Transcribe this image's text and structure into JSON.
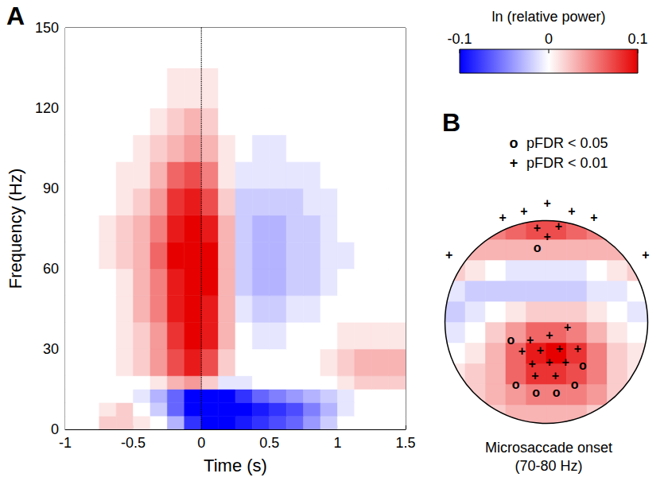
{
  "chart_data": [
    {
      "type": "heatmap",
      "panel": "A",
      "xlabel": "Time (s)",
      "ylabel": "Frequency (Hz)",
      "xlim": [
        -1,
        1.5
      ],
      "xticks": [
        -1,
        -0.5,
        0,
        0.5,
        1,
        1.5
      ],
      "ylim": [
        0,
        150
      ],
      "yticks": [
        0,
        30,
        60,
        90,
        120,
        150
      ],
      "grid": "y",
      "reference_line": 0,
      "time_edges": [
        -1,
        -0.875,
        -0.75,
        -0.625,
        -0.5,
        -0.375,
        -0.25,
        -0.125,
        0,
        0.125,
        0.25,
        0.375,
        0.5,
        0.625,
        0.75,
        0.875,
        1,
        1.125,
        1.25,
        1.375,
        1.5
      ],
      "freq_edges": [
        0,
        5,
        10,
        15,
        20,
        30,
        40,
        50,
        60,
        70,
        80,
        90,
        100,
        110,
        120,
        135,
        150
      ],
      "cells": [
        [
          0,
          0,
          0.02,
          0.02,
          0.01,
          0,
          -0.03,
          -0.08,
          -0.1,
          -0.1,
          -0.09,
          -0.08,
          -0.07,
          -0.06,
          -0.04,
          -0.02,
          0,
          0,
          0,
          0
        ],
        [
          0,
          0,
          0.01,
          0.02,
          0,
          -0.02,
          -0.06,
          -0.1,
          -0.1,
          -0.1,
          -0.1,
          -0.09,
          -0.08,
          -0.07,
          -0.05,
          -0.03,
          -0.01,
          0,
          0,
          0
        ],
        [
          0,
          0,
          0,
          0,
          -0.01,
          -0.03,
          -0.06,
          -0.1,
          -0.1,
          -0.1,
          -0.08,
          -0.06,
          -0.05,
          -0.04,
          -0.03,
          -0.02,
          -0.01,
          0,
          0,
          0
        ],
        [
          0,
          0,
          0,
          0,
          0,
          0.01,
          0.03,
          0.04,
          0.02,
          -0.01,
          -0.01,
          0,
          0,
          0,
          0,
          0,
          0.01,
          0.02,
          0.02,
          0.02
        ],
        [
          0,
          0,
          0,
          0.01,
          0.02,
          0.04,
          0.07,
          0.09,
          0.07,
          0.02,
          0,
          0,
          0,
          0,
          0,
          0.01,
          0.02,
          0.03,
          0.03,
          0.03
        ],
        [
          0,
          0,
          0,
          0.01,
          0.02,
          0.04,
          0.08,
          0.1,
          0.09,
          0.03,
          0,
          -0.01,
          -0.01,
          0,
          0,
          0,
          0.01,
          0.01,
          0.01,
          0.01
        ],
        [
          0,
          0,
          0,
          0.01,
          0.03,
          0.05,
          0.09,
          0.1,
          0.09,
          0.03,
          -0.01,
          -0.02,
          -0.02,
          -0.01,
          -0.01,
          0,
          0,
          0,
          0,
          0
        ],
        [
          0,
          0,
          0,
          0.01,
          0.03,
          0.05,
          0.09,
          0.1,
          0.1,
          0.03,
          -0.02,
          -0.03,
          -0.03,
          -0.02,
          -0.02,
          -0.01,
          0,
          0,
          0,
          0
        ],
        [
          0,
          0,
          0.01,
          0.02,
          0.03,
          0.06,
          0.1,
          0.1,
          0.1,
          0.03,
          -0.02,
          -0.03,
          -0.03,
          -0.02,
          -0.02,
          -0.01,
          -0.01,
          0,
          0,
          0
        ],
        [
          0,
          0,
          0.01,
          0.02,
          0.03,
          0.05,
          0.09,
          0.1,
          0.09,
          0.03,
          -0.02,
          -0.03,
          -0.03,
          -0.02,
          -0.02,
          -0.01,
          0,
          0,
          0,
          0
        ],
        [
          0,
          0,
          0,
          0.01,
          0.02,
          0.04,
          0.08,
          0.09,
          0.07,
          0.02,
          -0.02,
          -0.02,
          -0.02,
          -0.02,
          -0.01,
          -0.01,
          0,
          0,
          0,
          0
        ],
        [
          0,
          0,
          0,
          0.01,
          0.01,
          0.03,
          0.06,
          0.07,
          0.05,
          0.01,
          -0.01,
          -0.01,
          -0.01,
          -0.01,
          -0.01,
          0,
          0,
          0,
          0,
          0
        ],
        [
          0,
          0,
          0,
          0,
          0.01,
          0.02,
          0.03,
          0.04,
          0.03,
          0.01,
          0,
          -0.01,
          -0.01,
          0,
          0,
          0,
          0,
          0,
          0,
          0
        ],
        [
          0,
          0,
          0,
          0,
          0,
          0.01,
          0.02,
          0.03,
          0.02,
          0,
          0,
          0,
          0,
          0,
          0,
          0,
          0,
          0,
          0,
          0
        ],
        [
          0,
          0,
          0,
          0,
          0,
          0,
          0.01,
          0.01,
          0.01,
          0,
          0,
          0,
          0,
          0,
          0,
          0,
          0,
          0,
          0,
          0
        ],
        [
          0,
          0,
          0,
          0,
          0,
          0,
          0,
          0,
          0,
          0,
          0,
          0,
          0,
          0,
          0,
          0,
          0,
          0,
          0,
          0
        ]
      ],
      "colorbar": {
        "title": "ln (relative power)",
        "range": [
          -0.1,
          0.1
        ],
        "ticks": [
          -0.1,
          0,
          0.1
        ]
      }
    },
    {
      "type": "topomap",
      "panel": "B",
      "caption": [
        "Microsaccade onset",
        "(70-80 Hz)"
      ],
      "tick_labels": false,
      "x_edges": [
        -1.2,
        -1,
        -0.8,
        -0.6,
        -0.4,
        -0.2,
        0,
        0.2,
        0.4,
        0.6,
        0.8,
        1,
        1.2
      ],
      "y_edges": [
        -1.2,
        -1,
        -0.8,
        -0.6,
        -0.4,
        -0.2,
        0,
        0.2,
        0.4,
        0.6,
        0.8,
        1,
        1.2
      ],
      "values": [
        [
          0.01,
          0.01,
          0.01,
          0.01,
          0.02,
          0.02,
          0.02,
          0.02,
          0.01,
          0.01,
          0.01,
          0.01
        ],
        [
          0.01,
          0.01,
          0.01,
          0.02,
          0.03,
          0.03,
          0.03,
          0.03,
          0.02,
          0.01,
          0.01,
          0.01
        ],
        [
          0.01,
          0.01,
          0.02,
          0.03,
          0.04,
          0.05,
          0.05,
          0.05,
          0.04,
          0.02,
          0.01,
          0.01
        ],
        [
          0.01,
          0.01,
          0.02,
          0.03,
          0.06,
          0.08,
          0.08,
          0.07,
          0.05,
          0.02,
          0.01,
          0.01
        ],
        [
          0,
          0,
          0.01,
          0.03,
          0.06,
          0.09,
          0.1,
          0.08,
          0.05,
          0.02,
          0.01,
          0
        ],
        [
          -0.01,
          -0.01,
          0,
          0.02,
          0.04,
          0.06,
          0.06,
          0.05,
          0.03,
          0.01,
          0,
          -0.01
        ],
        [
          -0.02,
          -0.02,
          -0.01,
          0,
          0.01,
          0.02,
          0.02,
          0.02,
          0.01,
          0,
          -0.01,
          -0.01
        ],
        [
          0,
          -0.01,
          -0.02,
          -0.02,
          -0.02,
          -0.02,
          -0.02,
          -0.02,
          -0.01,
          -0.01,
          0,
          0.01
        ],
        [
          0.02,
          0.02,
          0.01,
          0,
          -0.01,
          -0.01,
          -0.01,
          -0.01,
          0,
          0.01,
          0.02,
          0.02
        ],
        [
          0.03,
          0.03,
          0.03,
          0.03,
          0.03,
          0.03,
          0.03,
          0.03,
          0.03,
          0.03,
          0.03,
          0.03
        ],
        [
          0.03,
          0.03,
          0.04,
          0.05,
          0.06,
          0.07,
          0.07,
          0.06,
          0.05,
          0.04,
          0.03,
          0.03
        ],
        [
          0.03,
          0.04,
          0.05,
          0.06,
          0.07,
          0.08,
          0.08,
          0.07,
          0.06,
          0.05,
          0.04,
          0.03
        ]
      ],
      "legend_items": [
        {
          "symbol": "o",
          "label": "pFDR < 0.05"
        },
        {
          "symbol": "+",
          "label": "pFDR < 0.01"
        }
      ],
      "electrodes": [
        {
          "x": 0.01,
          "y": 1.15,
          "mark": "+"
        },
        {
          "x": -0.22,
          "y": 1.07,
          "mark": "+"
        },
        {
          "x": 0.25,
          "y": 1.07,
          "mark": "+"
        },
        {
          "x": -0.43,
          "y": 1.01,
          "mark": "+"
        },
        {
          "x": 0.47,
          "y": 1.01,
          "mark": "+"
        },
        {
          "x": -0.09,
          "y": 0.91,
          "mark": "+"
        },
        {
          "x": 0.12,
          "y": 0.93,
          "mark": "+"
        },
        {
          "x": 0.01,
          "y": 0.83,
          "mark": "+"
        },
        {
          "x": -0.09,
          "y": 0.72,
          "mark": "o"
        },
        {
          "x": -0.96,
          "y": 0.65,
          "mark": "+"
        },
        {
          "x": 0.98,
          "y": 0.65,
          "mark": "+"
        },
        {
          "x": -0.35,
          "y": -0.17,
          "mark": "o"
        },
        {
          "x": -0.16,
          "y": -0.17,
          "mark": "+"
        },
        {
          "x": 0.03,
          "y": -0.13,
          "mark": "+"
        },
        {
          "x": 0.21,
          "y": -0.05,
          "mark": "+"
        },
        {
          "x": -0.24,
          "y": -0.28,
          "mark": "+"
        },
        {
          "x": -0.06,
          "y": -0.27,
          "mark": "+"
        },
        {
          "x": 0.13,
          "y": -0.26,
          "mark": "+"
        },
        {
          "x": 0.31,
          "y": -0.26,
          "mark": "+"
        },
        {
          "x": -0.14,
          "y": -0.4,
          "mark": "+"
        },
        {
          "x": 0.03,
          "y": -0.39,
          "mark": "+"
        },
        {
          "x": 0.19,
          "y": -0.39,
          "mark": "+"
        },
        {
          "x": 0.36,
          "y": -0.42,
          "mark": "o"
        },
        {
          "x": -0.11,
          "y": -0.52,
          "mark": "+"
        },
        {
          "x": 0.09,
          "y": -0.52,
          "mark": "+"
        },
        {
          "x": 0.28,
          "y": -0.6,
          "mark": "o"
        },
        {
          "x": -0.3,
          "y": -0.6,
          "mark": "o"
        },
        {
          "x": -0.1,
          "y": -0.68,
          "mark": "o"
        },
        {
          "x": 0.1,
          "y": -0.68,
          "mark": "o"
        }
      ]
    }
  ]
}
